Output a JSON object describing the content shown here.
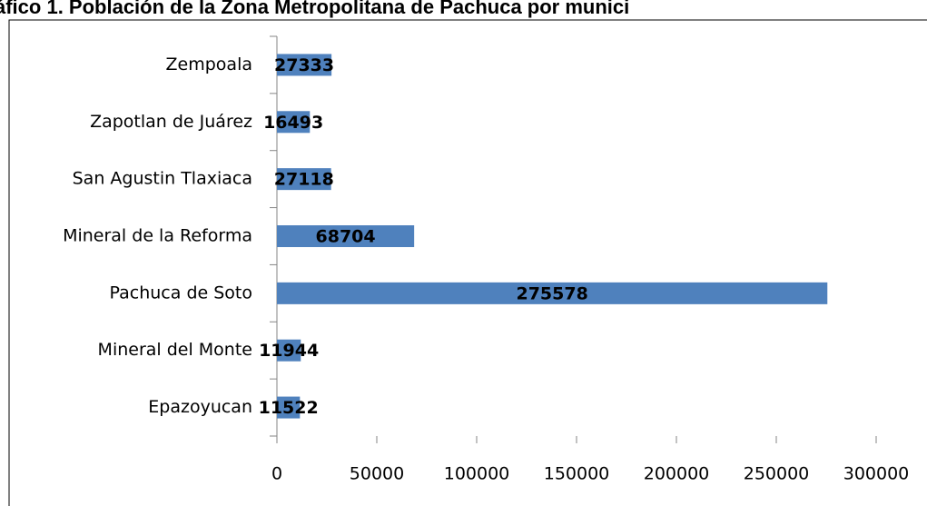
{
  "chart_data": {
    "type": "bar",
    "orientation": "horizontal",
    "title": "áfico 1. Población de la Zona Metropolitana de Pachuca por munici",
    "categories": [
      "Epazoyucan",
      "Mineral del Monte",
      "Pachuca de Soto",
      "Mineral de la Reforma",
      "San Agustin Tlaxiaca",
      "Zapotlan de Juárez",
      "Zempoala"
    ],
    "values": [
      11522,
      11944,
      275578,
      68704,
      27118,
      16493,
      27333
    ],
    "color": "#4f81bd",
    "xlim": [
      0,
      300000
    ],
    "xticks": [
      0,
      50000,
      100000,
      150000,
      200000,
      250000,
      300000
    ],
    "grid": false
  }
}
